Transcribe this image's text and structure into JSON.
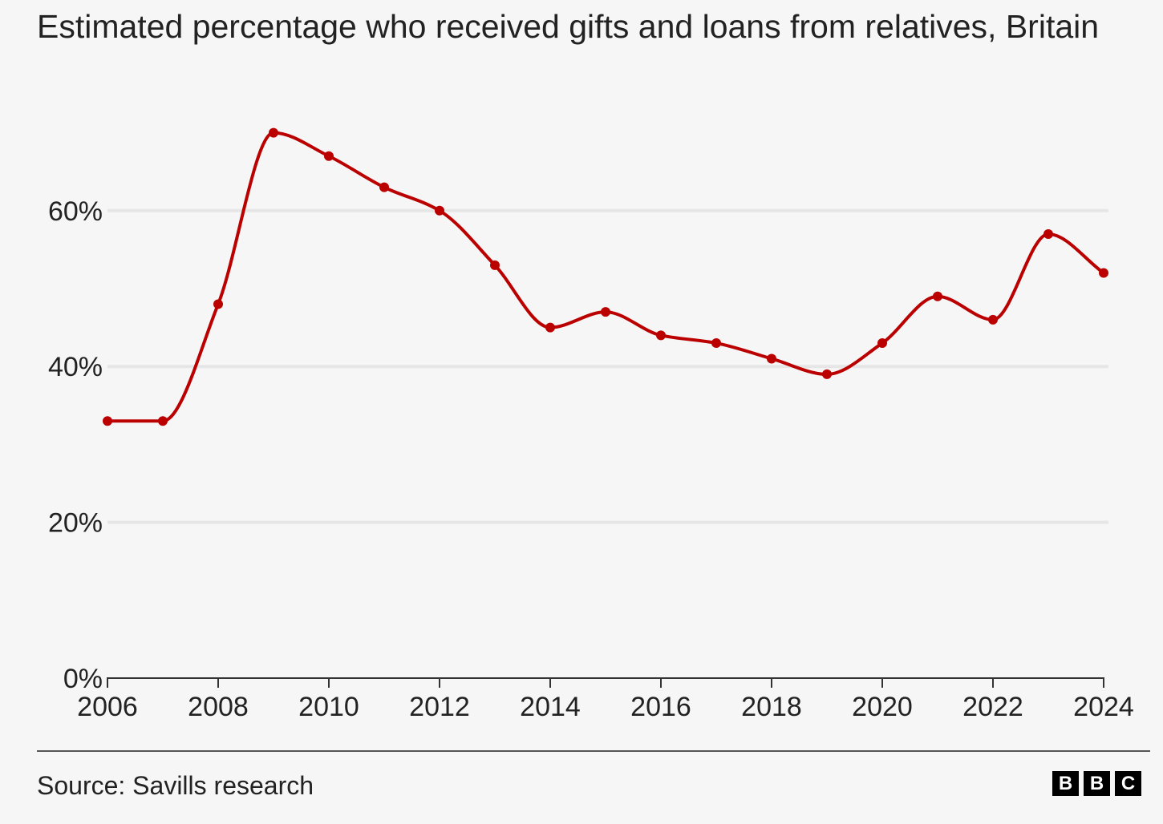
{
  "chart_data": {
    "type": "line",
    "title": "Estimated percentage who received gifts and loans from relatives, Britain",
    "xlabel": "",
    "ylabel": "",
    "x": [
      2006,
      2007,
      2008,
      2009,
      2010,
      2011,
      2012,
      2013,
      2014,
      2015,
      2016,
      2017,
      2018,
      2019,
      2020,
      2021,
      2022,
      2023,
      2024
    ],
    "series": [
      {
        "name": "Received gifts and loans from relatives",
        "color": "#bb0000",
        "values": [
          33,
          33,
          48,
          70,
          67,
          63,
          60,
          53,
          45,
          47,
          44,
          43,
          41,
          39,
          43,
          49,
          46,
          57,
          52
        ]
      }
    ],
    "xlim": [
      2006,
      2024
    ],
    "ylim": [
      0,
      73
    ],
    "x_ticks": [
      "2006",
      "2008",
      "2010",
      "2012",
      "2014",
      "2016",
      "2018",
      "2020",
      "2022",
      "2024"
    ],
    "y_ticks": [
      {
        "value": 0,
        "label": "0%"
      },
      {
        "value": 20,
        "label": "20%"
      },
      {
        "value": 40,
        "label": "40%"
      },
      {
        "value": 60,
        "label": "60%"
      }
    ],
    "grid": "horizontal",
    "source": "Source: Savills research"
  },
  "logo": {
    "name": "bbc-logo",
    "letters": [
      "B",
      "B",
      "C"
    ]
  },
  "colors": {
    "background": "#f6f6f6",
    "line": "#bb0000",
    "gridline": "#e6e6e6",
    "text": "#222222"
  }
}
